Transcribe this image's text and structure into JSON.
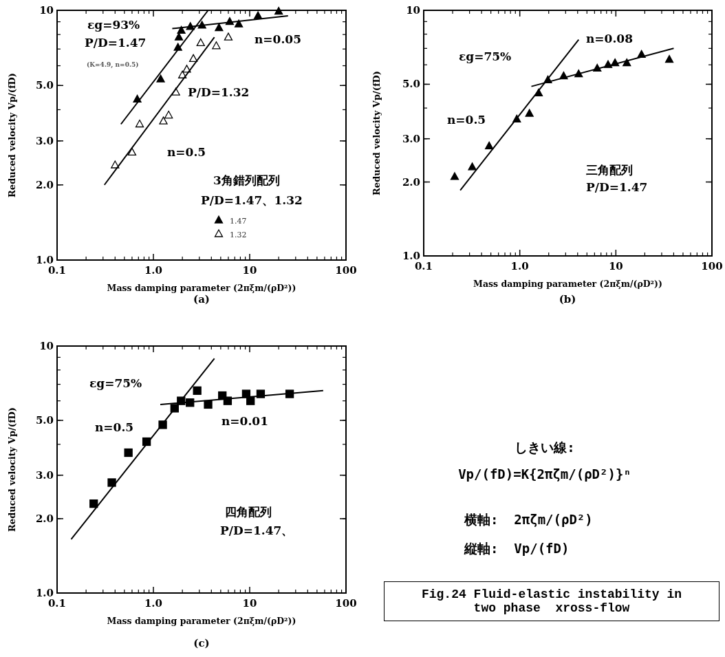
{
  "chart_data": [
    {
      "type": "scatter",
      "xlabel": "Mass damping parameter (2πξm/(ρD²))",
      "ylabel": "Reduced velocity  Vp/(fD)",
      "log": "xy",
      "xlim": [
        0.1,
        100
      ],
      "ylim": [
        1,
        10
      ],
      "xticks": [
        {
          "value": 0.1,
          "label": "0.1"
        },
        {
          "value": 1,
          "label": "1.0"
        },
        {
          "value": 10,
          "label": "10"
        },
        {
          "value": 100,
          "label": "100"
        }
      ],
      "yticks": [
        {
          "value": 1,
          "label": "1.0"
        },
        {
          "value": 2,
          "label": "2.0"
        },
        {
          "value": 3,
          "label": "3.0"
        },
        {
          "value": 5,
          "label": "5.0"
        },
        {
          "value": 10,
          "label": "10"
        }
      ],
      "legend": "bottom right",
      "series": [
        {
          "name": "1.47",
          "color": "#000000",
          "marker": "triangle",
          "x": [
            0.68,
            1.19,
            1.8,
            1.84,
            1.95,
            2.42,
            3.2,
            4.8,
            6.2,
            7.7,
            12.2,
            20
          ],
          "values": [
            4.4,
            5.3,
            7.1,
            7.8,
            8.3,
            8.6,
            8.7,
            8.5,
            9.0,
            8.8,
            9.5,
            9.9
          ]
        },
        {
          "name": "1.32",
          "color": "#ffffff",
          "marker": "triangle",
          "x": [
            0.4,
            0.6,
            0.72,
            1.27,
            1.44,
            1.71,
            2.0,
            2.22,
            2.6,
            3.1,
            4.5,
            6.0
          ],
          "values": [
            2.4,
            2.7,
            3.5,
            3.6,
            3.8,
            4.7,
            5.5,
            5.8,
            6.4,
            7.4,
            7.2,
            7.8
          ]
        },
        {
          "type": "line",
          "color": "#000000",
          "marker": "none",
          "x": [
            0.46,
            3.7
          ],
          "values": [
            3.5,
            10
          ]
        },
        {
          "type": "line",
          "color": "#000000",
          "marker": "none",
          "x": [
            0.31,
            4.3
          ],
          "values": [
            2.0,
            7.8
          ]
        },
        {
          "type": "line",
          "color": "#000000",
          "marker": "none",
          "x": [
            1.57,
            25
          ],
          "values": [
            8.45,
            9.5
          ]
        }
      ],
      "annotations": [
        "εg=93%",
        "P/D=1.47",
        "(K=4.9, n=0.5)",
        "P/D=1.32",
        "n=0.5",
        "n=0.05",
        "3角錯列配列",
        "P/D=1.47、1.32",
        "(a)"
      ]
    },
    {
      "type": "scatter",
      "xlabel": "Mass damping parameter (2πξm/(ρD²))",
      "ylabel": "Reduced velocity  Vp/(fD)",
      "log": "xy",
      "xlim": [
        0.1,
        100
      ],
      "ylim": [
        1,
        10
      ],
      "xticks": [
        {
          "value": 0.1,
          "label": "0.1"
        },
        {
          "value": 1,
          "label": "1.0"
        },
        {
          "value": 10,
          "label": "10"
        },
        {
          "value": 100,
          "label": "100"
        }
      ],
      "yticks": [
        {
          "value": 1,
          "label": "1.0"
        },
        {
          "value": 2,
          "label": "2.0"
        },
        {
          "value": 3,
          "label": "3.0"
        },
        {
          "value": 5,
          "label": "5.0"
        },
        {
          "value": 10,
          "label": "10"
        }
      ],
      "series": [
        {
          "color": "#000000",
          "marker": "triangle",
          "x": [
            0.21,
            0.32,
            0.48,
            0.93,
            1.26,
            1.57,
            1.96,
            2.86,
            4.1,
            6.4,
            8.3,
            9.8,
            13,
            18.5,
            36
          ],
          "values": [
            2.1,
            2.3,
            2.8,
            3.6,
            3.8,
            4.6,
            5.2,
            5.4,
            5.5,
            5.8,
            6.0,
            6.1,
            6.1,
            6.6,
            6.3
          ]
        },
        {
          "type": "line",
          "color": "#000000",
          "marker": "none",
          "x": [
            0.24,
            4.1
          ],
          "values": [
            1.85,
            7.6
          ]
        },
        {
          "type": "line",
          "color": "#000000",
          "marker": "none",
          "x": [
            1.32,
            40
          ],
          "values": [
            4.9,
            7.0
          ]
        }
      ],
      "annotations": [
        "εg=75%",
        "n=0.08",
        "n=0.5",
        "三角配列",
        "P/D=1.47",
        "(b)"
      ]
    },
    {
      "type": "scatter",
      "xlabel": "Mass damping parameter (2πξm/(ρD²))",
      "ylabel": "Reduced velocity  Vp/(fD)",
      "log": "xy",
      "xlim": [
        0.1,
        100
      ],
      "ylim": [
        1,
        10
      ],
      "xticks": [
        {
          "value": 0.1,
          "label": "0.1"
        },
        {
          "value": 1,
          "label": "1.0"
        },
        {
          "value": 10,
          "label": "10"
        },
        {
          "value": 100,
          "label": "100"
        }
      ],
      "yticks": [
        {
          "value": 1,
          "label": "1.0"
        },
        {
          "value": 2,
          "label": "2.0"
        },
        {
          "value": 3,
          "label": "3.0"
        },
        {
          "value": 5,
          "label": "5.0"
        },
        {
          "value": 10,
          "label": "10"
        }
      ],
      "series": [
        {
          "color": "#000000",
          "marker": "square",
          "x": [
            0.24,
            0.37,
            0.55,
            0.85,
            1.25,
            1.66,
            1.94,
            2.4,
            2.85,
            3.7,
            5.2,
            5.9,
            9.2,
            10.2,
            13,
            26
          ],
          "values": [
            2.3,
            2.8,
            3.7,
            4.1,
            4.8,
            5.6,
            6.0,
            5.9,
            6.6,
            5.8,
            6.3,
            6.0,
            6.4,
            6.0,
            6.4,
            6.4
          ]
        },
        {
          "type": "line",
          "color": "#000000",
          "marker": "none",
          "x": [
            0.14,
            4.3
          ],
          "values": [
            1.65,
            8.9
          ]
        },
        {
          "type": "line",
          "color": "#000000",
          "marker": "none",
          "x": [
            1.18,
            58
          ],
          "values": [
            5.8,
            6.6
          ]
        }
      ],
      "annotations": [
        "εg=75%",
        "n=0.5",
        "n=0.01",
        "四角配列",
        "P/D=1.47、",
        "(c)"
      ]
    },
    {
      "type": "other",
      "title": "Fig.24 Fluid-elastic instability in two phase  xross-flow",
      "annotations": [
        "しきい線:",
        "Vp/(fD)=K{2πζm/(ρD²)}ⁿ",
        "横軸:  2πζm/(ρD²)",
        "縦軸:  Vp/(fD)"
      ]
    }
  ]
}
